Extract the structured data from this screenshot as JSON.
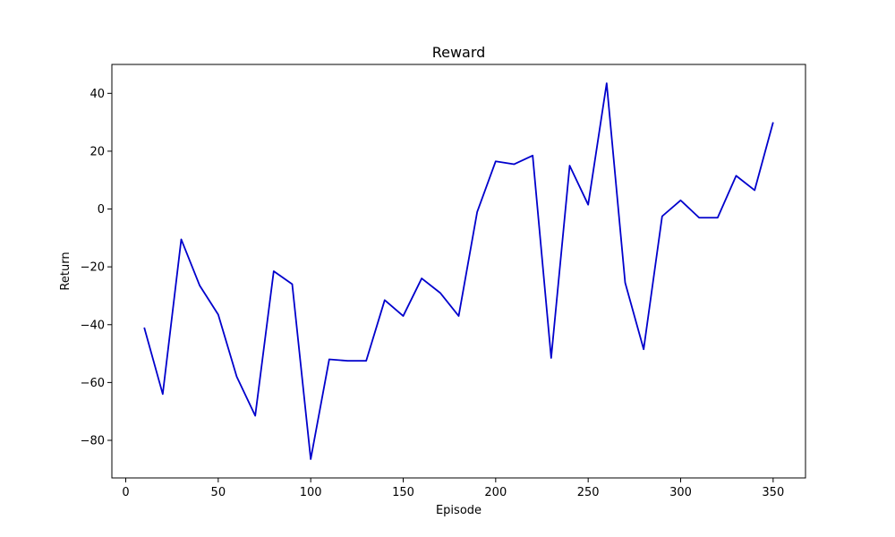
{
  "chart_data": {
    "type": "line",
    "title": "Reward",
    "xlabel": "Episode",
    "ylabel": "Return",
    "xlim": [
      -7.5,
      367.5
    ],
    "ylim": [
      -93,
      50
    ],
    "xticks": [
      0,
      50,
      100,
      150,
      200,
      250,
      300,
      350
    ],
    "yticks": [
      -80,
      -60,
      -40,
      -20,
      0,
      20,
      40
    ],
    "grid": false,
    "legend": "none",
    "series": [
      {
        "color": "#0000cc",
        "x": [
          10,
          20,
          30,
          40,
          50,
          60,
          70,
          80,
          90,
          100,
          110,
          120,
          130,
          140,
          150,
          160,
          170,
          180,
          190,
          200,
          210,
          220,
          230,
          240,
          250,
          260,
          270,
          280,
          290,
          300,
          310,
          320,
          330,
          340,
          350
        ],
        "y": [
          -41,
          -64,
          -10.5,
          -26.5,
          -36.5,
          -58,
          -71.5,
          -21.5,
          -26,
          -86.5,
          -52,
          -52.5,
          -52.5,
          -31.5,
          -37,
          -24,
          -29,
          -37,
          -1,
          16.5,
          15.5,
          18.5,
          -51.5,
          15,
          1.5,
          43.5,
          -25.5,
          -48.5,
          -2.5,
          3,
          -3,
          -3,
          11.5,
          6.5,
          30
        ]
      }
    ]
  }
}
